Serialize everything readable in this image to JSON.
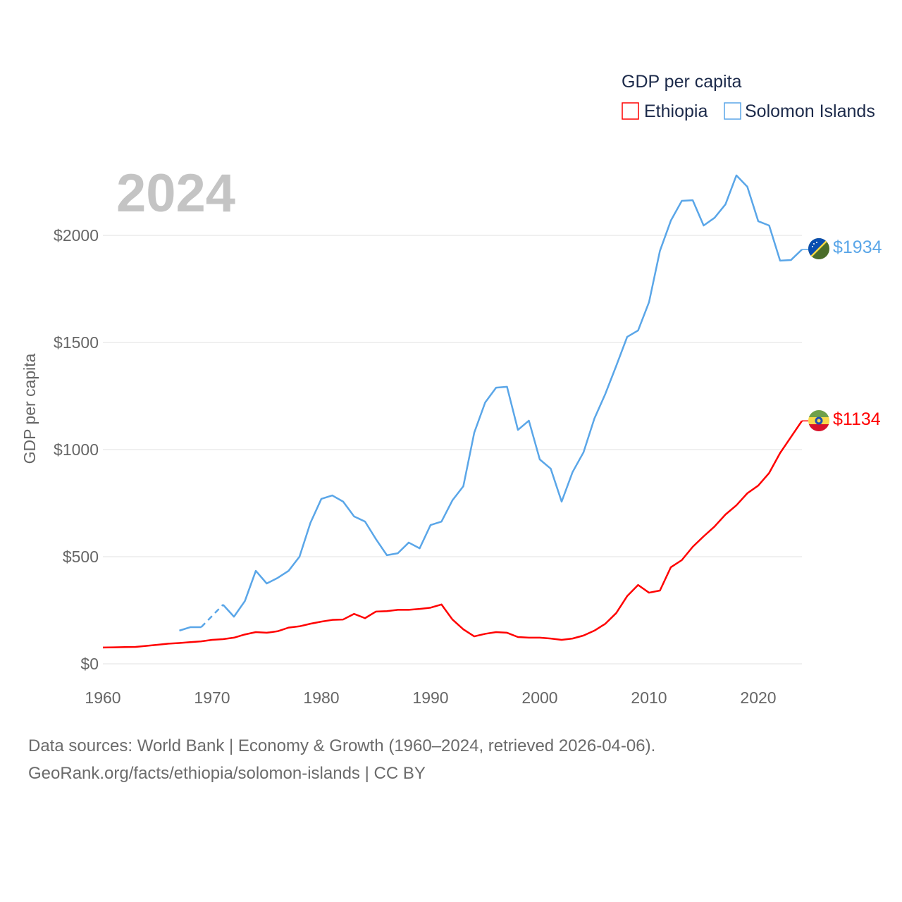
{
  "chart_data": {
    "type": "line",
    "title": "GDP per capita",
    "year_label": "2024",
    "ylabel": "GDP per capita",
    "xlabel": "",
    "xlim": [
      1960,
      2024
    ],
    "ylim": [
      0,
      2000
    ],
    "x_ticks": [
      "1960",
      "1970",
      "1980",
      "1990",
      "2000",
      "2010",
      "2020"
    ],
    "x_tick_values": [
      1960,
      1970,
      1980,
      1990,
      2000,
      2010,
      2020
    ],
    "y_ticks": [
      "$0",
      "$500",
      "$1000",
      "$1500",
      "$2000"
    ],
    "y_tick_values": [
      0,
      500,
      1000,
      1500,
      2000
    ],
    "grid": true,
    "legend_position": "top-right",
    "series": [
      {
        "name": "Ethiopia",
        "color": "#ff0000",
        "end_label": "$1134",
        "start_year": 1960,
        "values": [
          76,
          77,
          78,
          79,
          84,
          89,
          94,
          97,
          101,
          105,
          112,
          115,
          122,
          137,
          148,
          145,
          152,
          169,
          175,
          187,
          197,
          205,
          207,
          233,
          213,
          244,
          246,
          252,
          252,
          256,
          262,
          277,
          207,
          161,
          128,
          140,
          148,
          145,
          125,
          122,
          122,
          118,
          112,
          118,
          132,
          155,
          187,
          237,
          316,
          368,
          332,
          342,
          451,
          484,
          546,
          595,
          641,
          697,
          740,
          796,
          832,
          891,
          984,
          1059,
          1134
        ]
      },
      {
        "name": "Solomon Islands",
        "color": "#5aa6e8",
        "end_label": "$1934",
        "start_year": 1967,
        "values": [
          155,
          171,
          171,
          null,
          276,
          220,
          293,
          434,
          375,
          401,
          434,
          500,
          658,
          770,
          786,
          757,
          688,
          664,
          582,
          507,
          516,
          566,
          539,
          648,
          664,
          763,
          829,
          1079,
          1220,
          1289,
          1293,
          1092,
          1135,
          954,
          911,
          757,
          895,
          987,
          1145,
          1260,
          1391,
          1526,
          1556,
          1688,
          1928,
          2069,
          2161,
          2164,
          2046,
          2082,
          2145,
          2280,
          2227,
          2066,
          2046,
          1882,
          1885,
          1934
        ]
      }
    ]
  },
  "footer": {
    "line1": "Data sources: World Bank | Economy & Growth (1960–2024, retrieved 2026-04-06).",
    "line2": "GeoRank.org/facts/ethiopia/solomon-islands | CC BY"
  }
}
